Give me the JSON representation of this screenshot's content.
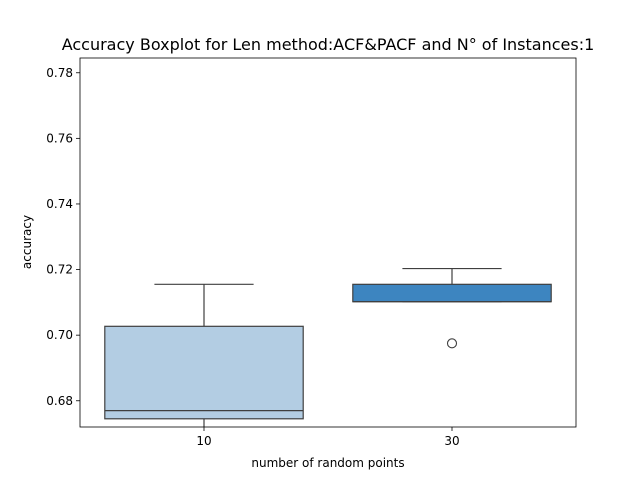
{
  "chart_data": {
    "type": "boxplot",
    "title": "Accuracy Boxplot for Len method:ACF&PACF and N° of Instances:1",
    "xlabel": "number of random points",
    "ylabel": "accuracy",
    "categories": [
      "10",
      "30"
    ],
    "ylim": [
      0.672,
      0.7845
    ],
    "yticks": [
      "0.68",
      "0.70",
      "0.72",
      "0.74",
      "0.76",
      "0.78"
    ],
    "ytick_values": [
      0.68,
      0.7,
      0.72,
      0.74,
      0.76,
      0.78
    ],
    "boxes": [
      {
        "category": "10",
        "whisker_low": 0.6715,
        "q1": 0.6745,
        "median": 0.677,
        "q3": 0.7027,
        "whisker_high": 0.7155,
        "outliers": [],
        "color": "#b3cde3"
      },
      {
        "category": "30",
        "whisker_low": 0.7102,
        "q1": 0.7102,
        "median": 0.7102,
        "q3": 0.7155,
        "whisker_high": 0.7203,
        "outliers": [
          0.6975
        ],
        "color": "#3d85c0"
      }
    ],
    "grid": false,
    "legend": "none"
  }
}
